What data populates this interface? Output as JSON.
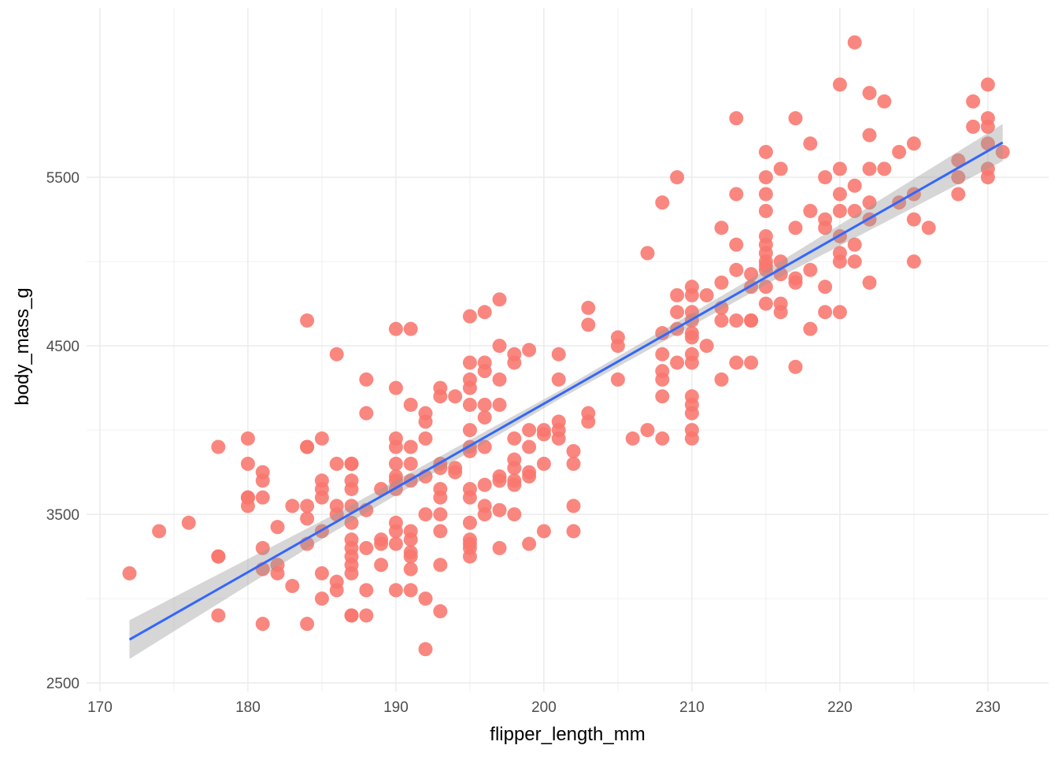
{
  "chart_data": {
    "type": "scatter",
    "x_label": "flipper_length_mm",
    "y_label": "body_mass_g",
    "color": "#F8766D",
    "xlim": [
      169.1,
      234.1
    ],
    "xticks": [
      170,
      180,
      190,
      200,
      210,
      220,
      230
    ],
    "ylim": [
      2449,
      6505
    ],
    "yticks": [
      2500,
      3500,
      4500,
      5500
    ],
    "grid": true,
    "x": [
      172,
      174,
      176,
      178,
      178,
      178,
      178,
      180,
      180,
      180,
      180,
      180,
      181,
      181,
      181,
      181,
      181,
      181,
      182,
      182,
      182,
      183,
      183,
      184,
      184,
      184,
      184,
      184,
      184,
      184,
      185,
      185,
      185,
      185,
      185,
      185,
      185,
      186,
      186,
      186,
      186,
      186,
      186,
      187,
      187,
      187,
      187,
      187,
      187,
      187,
      187,
      187,
      187,
      187,
      187,
      187,
      188,
      188,
      188,
      188,
      188,
      188,
      189,
      189,
      189,
      189,
      190,
      190,
      190,
      190,
      190,
      190,
      190,
      190,
      190,
      190,
      190,
      190,
      191,
      191,
      191,
      191,
      191,
      191,
      191,
      191,
      191,
      191,
      191,
      192,
      192,
      192,
      192,
      192,
      192,
      192,
      193,
      193,
      193,
      193,
      193,
      193,
      193,
      193,
      193,
      193,
      194,
      194,
      194,
      195,
      195,
      195,
      195,
      195,
      195,
      195,
      195,
      195,
      195,
      195,
      195,
      195,
      195,
      195,
      196,
      196,
      196,
      196,
      196,
      196,
      196,
      196,
      196,
      197,
      197,
      197,
      197,
      197,
      197,
      197,
      197,
      198,
      198,
      198,
      198,
      198,
      198,
      198,
      198,
      199,
      199,
      199,
      199,
      199,
      199,
      200,
      200,
      200,
      200,
      201,
      201,
      201,
      201,
      201,
      202,
      202,
      202,
      202,
      203,
      203,
      203,
      203,
      205,
      205,
      205,
      206,
      207,
      207,
      208,
      208,
      208,
      208,
      208,
      208,
      208,
      209,
      209,
      209,
      209,
      209,
      210,
      210,
      210,
      210,
      210,
      210,
      210,
      210,
      210,
      210,
      210,
      210,
      210,
      211,
      211,
      212,
      212,
      212,
      212,
      212,
      213,
      213,
      213,
      213,
      213,
      213,
      214,
      214,
      214,
      214,
      214,
      215,
      215,
      215,
      215,
      215,
      215,
      215,
      215,
      215,
      215,
      215,
      215,
      216,
      216,
      216,
      216,
      216,
      217,
      217,
      217,
      217,
      217,
      218,
      218,
      218,
      218,
      219,
      219,
      219,
      219,
      219,
      220,
      220,
      220,
      220,
      220,
      220,
      220,
      220,
      221,
      221,
      221,
      221,
      221,
      222,
      222,
      222,
      222,
      222,
      222,
      223,
      223,
      224,
      224,
      225,
      225,
      225,
      225,
      226,
      228,
      228,
      228,
      229,
      229,
      230,
      230,
      230,
      230,
      230,
      230,
      231
    ],
    "values": [
      3150,
      3400,
      3450,
      3250,
      3900,
      2900,
      3250,
      3950,
      3800,
      3600,
      3550,
      3600,
      3750,
      3700,
      3600,
      3300,
      2850,
      3175,
      3425,
      3200,
      3150,
      3550,
      3075,
      4650,
      3900,
      3900,
      3550,
      3475,
      3325,
      2850,
      3950,
      3700,
      3650,
      3600,
      3400,
      3150,
      3000,
      4450,
      3800,
      3550,
      3500,
      3100,
      3050,
      3800,
      3800,
      3700,
      3650,
      3550,
      3450,
      3350,
      3300,
      3250,
      3200,
      3150,
      2900,
      2900,
      4300,
      4100,
      3525,
      3300,
      3050,
      2900,
      3650,
      3350,
      3325,
      3200,
      4600,
      4250,
      3950,
      3900,
      3800,
      3725,
      3700,
      3650,
      3450,
      3400,
      3325,
      3050,
      4600,
      4150,
      3900,
      3800,
      3700,
      3400,
      3350,
      3275,
      3250,
      3175,
      3050,
      4100,
      4050,
      3950,
      3725,
      3500,
      3000,
      2700,
      4250,
      4200,
      3800,
      3775,
      3650,
      3600,
      3500,
      3400,
      3200,
      2925,
      4200,
      3775,
      3750,
      4675,
      4400,
      4300,
      4250,
      4150,
      4000,
      3900,
      3875,
      3650,
      3600,
      3450,
      3350,
      3325,
      3300,
      3250,
      4700,
      4400,
      4350,
      4150,
      4075,
      3900,
      3675,
      3550,
      3500,
      4775,
      4500,
      4300,
      4150,
      3725,
      3700,
      3525,
      3300,
      4450,
      4400,
      3950,
      3825,
      3775,
      3700,
      3675,
      3500,
      4475,
      4000,
      3900,
      3750,
      3725,
      3325,
      4000,
      3975,
      3800,
      3400,
      4450,
      4300,
      4050,
      4000,
      3950,
      3875,
      3800,
      3550,
      3400,
      4725,
      4625,
      4100,
      4050,
      4550,
      4500,
      4300,
      3950,
      5050,
      4000,
      5350,
      4575,
      4450,
      4350,
      4300,
      4200,
      3950,
      5500,
      4800,
      4700,
      4600,
      4400,
      4850,
      4800,
      4700,
      4650,
      4575,
      4550,
      4450,
      4400,
      4200,
      4150,
      4100,
      4000,
      3950,
      4800,
      4500,
      5200,
      4875,
      4725,
      4650,
      4300,
      5850,
      5400,
      5100,
      4950,
      4650,
      4400,
      4925,
      4850,
      4650,
      4650,
      4400,
      5650,
      5500,
      5400,
      5300,
      5150,
      5100,
      5050,
      5000,
      4975,
      4950,
      4850,
      4750,
      5550,
      5000,
      4925,
      4750,
      4700,
      5850,
      5200,
      4900,
      4875,
      4375,
      5700,
      5300,
      4950,
      4600,
      5500,
      5250,
      5200,
      4850,
      4700,
      6050,
      5550,
      5400,
      5300,
      5150,
      5050,
      5000,
      4700,
      6300,
      5450,
      5300,
      5100,
      5000,
      6000,
      5750,
      5550,
      5350,
      5250,
      4875,
      5950,
      5550,
      5650,
      5350,
      5700,
      5400,
      5250,
      5000,
      5200,
      5600,
      5500,
      5400,
      5950,
      5800,
      6050,
      5850,
      5800,
      5700,
      5550,
      5500,
      5650
    ],
    "fit": {
      "color": "#3366FF",
      "x": [
        172,
        231
      ],
      "values": [
        2757,
        5706
      ]
    },
    "band": {
      "color": "#999999",
      "x": [
        172,
        186,
        201,
        216,
        231
      ],
      "lower": [
        2642,
        3407,
        4181,
        4911,
        5596
      ],
      "upper": [
        2872,
        3507,
        4231,
        5001,
        5816
      ]
    }
  }
}
